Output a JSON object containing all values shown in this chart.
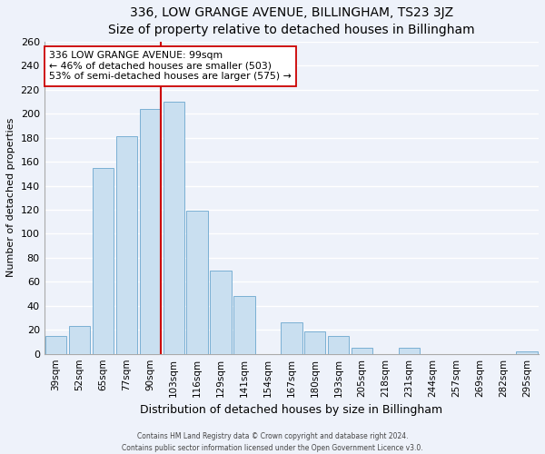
{
  "title": "336, LOW GRANGE AVENUE, BILLINGHAM, TS23 3JZ",
  "subtitle": "Size of property relative to detached houses in Billingham",
  "xlabel": "Distribution of detached houses by size in Billingham",
  "ylabel": "Number of detached properties",
  "bar_labels": [
    "39sqm",
    "52sqm",
    "65sqm",
    "77sqm",
    "90sqm",
    "103sqm",
    "116sqm",
    "129sqm",
    "141sqm",
    "154sqm",
    "167sqm",
    "180sqm",
    "193sqm",
    "205sqm",
    "218sqm",
    "231sqm",
    "244sqm",
    "257sqm",
    "269sqm",
    "282sqm",
    "295sqm"
  ],
  "bar_values": [
    15,
    23,
    155,
    181,
    204,
    210,
    119,
    69,
    48,
    0,
    26,
    19,
    15,
    5,
    0,
    5,
    0,
    0,
    0,
    0,
    2
  ],
  "bar_color": "#c9dff0",
  "bar_edge_color": "#7ab0d4",
  "vline_color": "#cc0000",
  "annotation_text": "336 LOW GRANGE AVENUE: 99sqm\n← 46% of detached houses are smaller (503)\n53% of semi-detached houses are larger (575) →",
  "annotation_box_color": "#ffffff",
  "annotation_box_edge": "#cc0000",
  "ylim": [
    0,
    260
  ],
  "yticks": [
    0,
    20,
    40,
    60,
    80,
    100,
    120,
    140,
    160,
    180,
    200,
    220,
    240,
    260
  ],
  "footer_line1": "Contains HM Land Registry data © Crown copyright and database right 2024.",
  "footer_line2": "Contains public sector information licensed under the Open Government Licence v3.0.",
  "bg_color": "#eef2fa",
  "plot_bg_color": "#eef2fa",
  "grid_color": "#ffffff",
  "title_fontsize": 10,
  "subtitle_fontsize": 9,
  "ylabel_fontsize": 8,
  "xlabel_fontsize": 9
}
